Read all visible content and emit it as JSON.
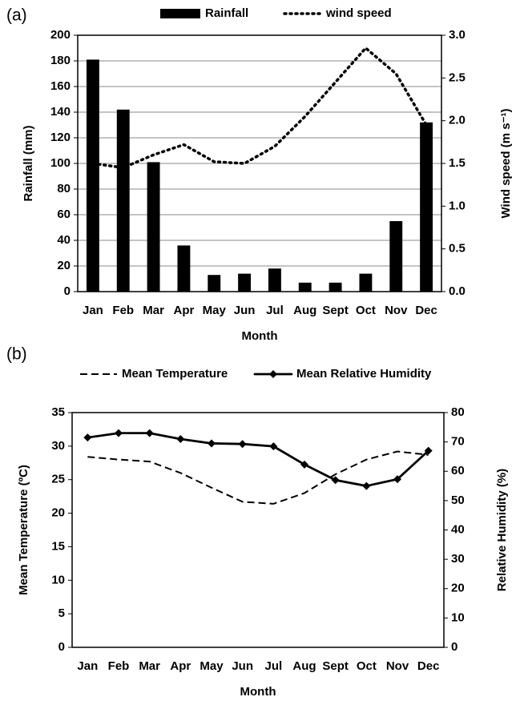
{
  "chart_data": [
    {
      "type": "bar",
      "panel_label": "(a)",
      "x_label": "Month",
      "y_label": "Rainfall (mm)",
      "y2_label": "Wind speed (m s⁻¹)",
      "categories": [
        "Jan",
        "Feb",
        "Mar",
        "Apr",
        "May",
        "Jun",
        "Jul",
        "Aug",
        "Sept",
        "Oct",
        "Nov",
        "Dec"
      ],
      "series": [
        {
          "name": "Rainfall",
          "color": "#000000",
          "type": "bar",
          "values": [
            181,
            142,
            101,
            36,
            13,
            14,
            18,
            7,
            7,
            14,
            55,
            132
          ]
        },
        {
          "name": "wind speed",
          "color": "#000000",
          "type": "line",
          "axis": "y2",
          "dash": "dotted",
          "values": [
            1.5,
            1.45,
            1.6,
            1.72,
            1.52,
            1.5,
            1.7,
            2.05,
            2.45,
            2.85,
            2.55,
            1.95
          ]
        }
      ],
      "ylim": [
        0,
        200
      ],
      "yticks": [
        0,
        20,
        40,
        60,
        80,
        100,
        120,
        140,
        160,
        180,
        200
      ],
      "y2lim": [
        0,
        3
      ],
      "y2ticks": [
        {
          "value": 0,
          "label": "0.0"
        },
        0.5,
        {
          "value": 1,
          "label": "1.0"
        },
        1.5,
        {
          "value": 2,
          "label": "2.0"
        },
        2.5,
        {
          "value": 3,
          "label": "3.0"
        }
      ],
      "grid": true
    },
    {
      "type": "line",
      "panel_label": "(b)",
      "x_label": "Month",
      "y_label": "Mean Temperature (ºC)",
      "y2_label": "Relative Humidity  (%)",
      "categories": [
        "Jan",
        "Feb",
        "Mar",
        "Apr",
        "May",
        "Jun",
        "Jul",
        "Aug",
        "Sept",
        "Oct",
        "Nov",
        "Dec"
      ],
      "series": [
        {
          "name": "Mean Temperature",
          "color": "#000000",
          "dash": "dashed",
          "values": [
            28.4,
            28.0,
            27.7,
            26.0,
            23.8,
            21.7,
            21.4,
            23.0,
            25.8,
            28.0,
            29.2,
            28.7
          ]
        },
        {
          "name": "Mean Relative Humidity",
          "color": "#000000",
          "axis": "y2",
          "dash": "solid",
          "marker": "diamond",
          "values": [
            71.5,
            73,
            73,
            71,
            69.5,
            69.3,
            68.5,
            62.3,
            57,
            55,
            57.3,
            67
          ]
        }
      ],
      "ylim": [
        0,
        35
      ],
      "yticks": [
        0,
        5,
        10,
        15,
        20,
        25,
        30,
        35
      ],
      "y2lim": [
        0,
        80
      ],
      "y2ticks": [
        0,
        10,
        20,
        30,
        40,
        50,
        60,
        70,
        80
      ],
      "grid": false
    }
  ]
}
